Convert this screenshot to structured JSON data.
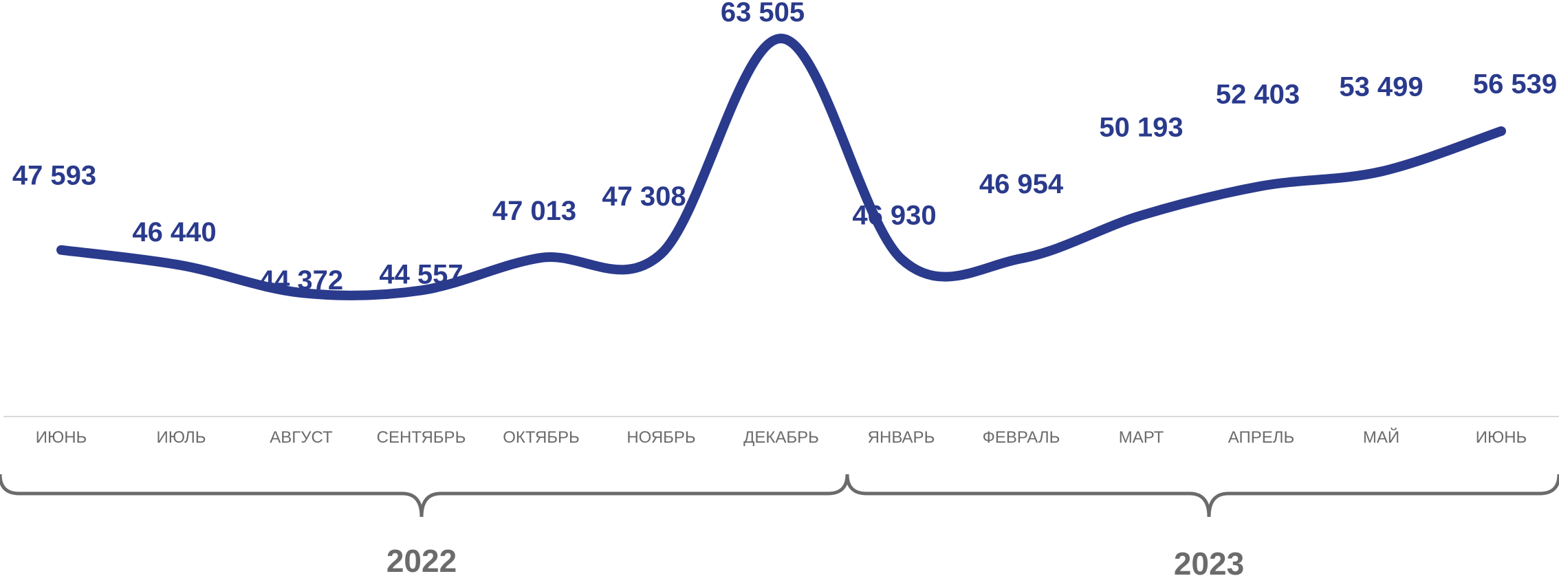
{
  "chart_data": {
    "type": "line",
    "categories": [
      "ИЮНЬ",
      "ИЮЛЬ",
      "АВГУСТ",
      "СЕНТЯБРЬ",
      "ОКТЯБРЬ",
      "НОЯБРЬ",
      "ДЕКАБРЬ",
      "ЯНВАРЬ",
      "ФЕВРАЛЬ",
      "МАРТ",
      "АПРЕЛЬ",
      "МАЙ",
      "ИЮНЬ"
    ],
    "values": [
      47593,
      46440,
      44372,
      44557,
      47013,
      47308,
      63505,
      46930,
      46954,
      50193,
      52403,
      53499,
      56539
    ],
    "value_labels": [
      "47 593",
      "46 440",
      "44 372",
      "44 557",
      "47 013",
      "47 308",
      "63 505",
      "46 930",
      "46 954",
      "50 193",
      "52 403",
      "53 499",
      "56 539"
    ],
    "year_groups": [
      {
        "label": "2022",
        "from": 0,
        "to": 6
      },
      {
        "label": "2023",
        "from": 7,
        "to": 12
      }
    ],
    "grid": false,
    "legend": "none"
  },
  "colors": {
    "line": "#2a3a8c",
    "labels": "#2a3a8c",
    "axis_text": "#6b6b6b",
    "brace": "#6b6b6b",
    "axis_line": "#d9d9d9"
  }
}
